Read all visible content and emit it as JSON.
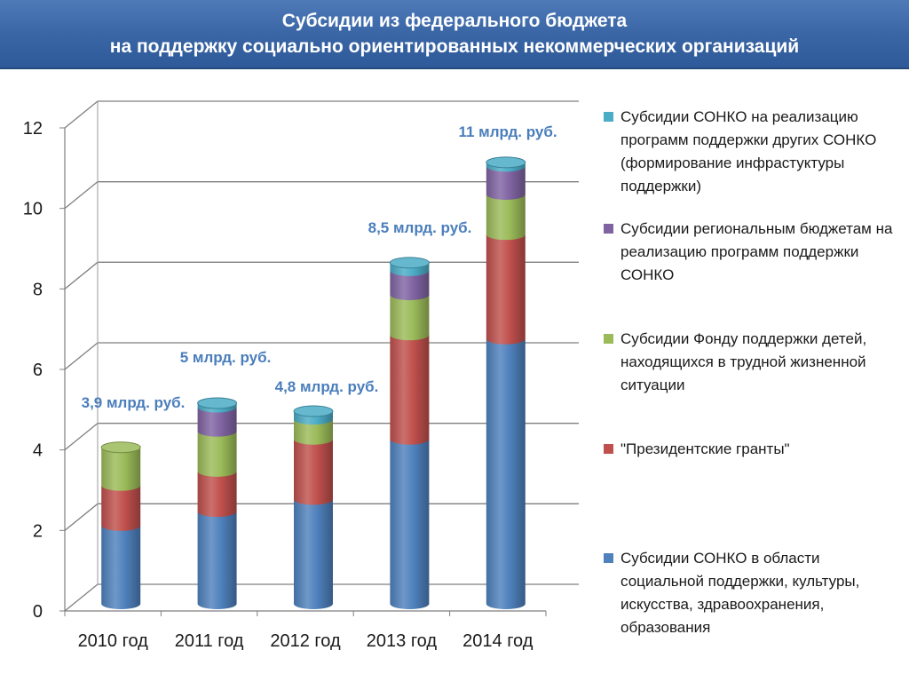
{
  "header": {
    "title_line1": "Субсидии из федерального бюджета",
    "title_line2": "на поддержку социально ориентированных некоммерческих организаций"
  },
  "chart_data": {
    "type": "bar",
    "stacked": true,
    "style": "3d-cylinder",
    "categories": [
      "2010 год",
      "2011 год",
      "2012 год",
      "2013 год",
      "2014 год"
    ],
    "ylim": [
      0,
      12
    ],
    "yticks": [
      0,
      2,
      4,
      6,
      8,
      10,
      12
    ],
    "grid": true,
    "legend_position": "right",
    "series": [
      {
        "name": "Субсидии СОНКО в области социальной поддержки, культуры, искусства, здравоохранения, образования",
        "color": "#4f81bd",
        "values": [
          1.95,
          2.3,
          2.6,
          4.1,
          6.6
        ]
      },
      {
        "name": "\"Президентские гранты\"",
        "color": "#c0504d",
        "values": [
          1.0,
          1.0,
          1.5,
          2.6,
          2.6
        ]
      },
      {
        "name": "Субсидии Фонду поддержки детей, находящихся в трудной жизненной ситуации",
        "color": "#9bbb59",
        "values": [
          0.95,
          1.0,
          0.5,
          1.0,
          1.0
        ]
      },
      {
        "name": "Субсидии региональным бюджетам на реализацию программ поддержки СОНКО",
        "color": "#8064a2",
        "values": [
          0,
          0.6,
          0,
          0.6,
          0.7
        ]
      },
      {
        "name": "Субсидии СОНКО на реализацию программ поддержки других СОНКО (формирование инфрастуктуры поддержки)",
        "color": "#4bacc6",
        "values": [
          0,
          0.1,
          0.2,
          0.2,
          0.1
        ]
      }
    ],
    "totals_labels": [
      "3,9 млрд. руб.",
      "5 млрд. руб.",
      "4,8 млрд. руб.",
      "8,5 млрд. руб.",
      "11 млрд. руб."
    ],
    "label_color": "#4a7ebb"
  },
  "legend": [
    {
      "text": "Субсидии СОНКО на реализацию программ поддержки других СОНКО (формирование инфрастуктуры поддержки)",
      "color": "#4bacc6"
    },
    {
      "text": "Субсидии региональным бюджетам на реализацию программ поддержки СОНКО",
      "color": "#8064a2"
    },
    {
      "text": "Субсидии Фонду поддержки детей, находящихся в трудной жизненной ситуации",
      "color": "#9bbb59"
    },
    {
      "text": "\"Президентские гранты\"",
      "color": "#c0504d"
    },
    {
      "text": "Субсидии СОНКО в области социальной поддержки, культуры, искусства, здравоохранения, образования",
      "color": "#4f81bd"
    }
  ]
}
